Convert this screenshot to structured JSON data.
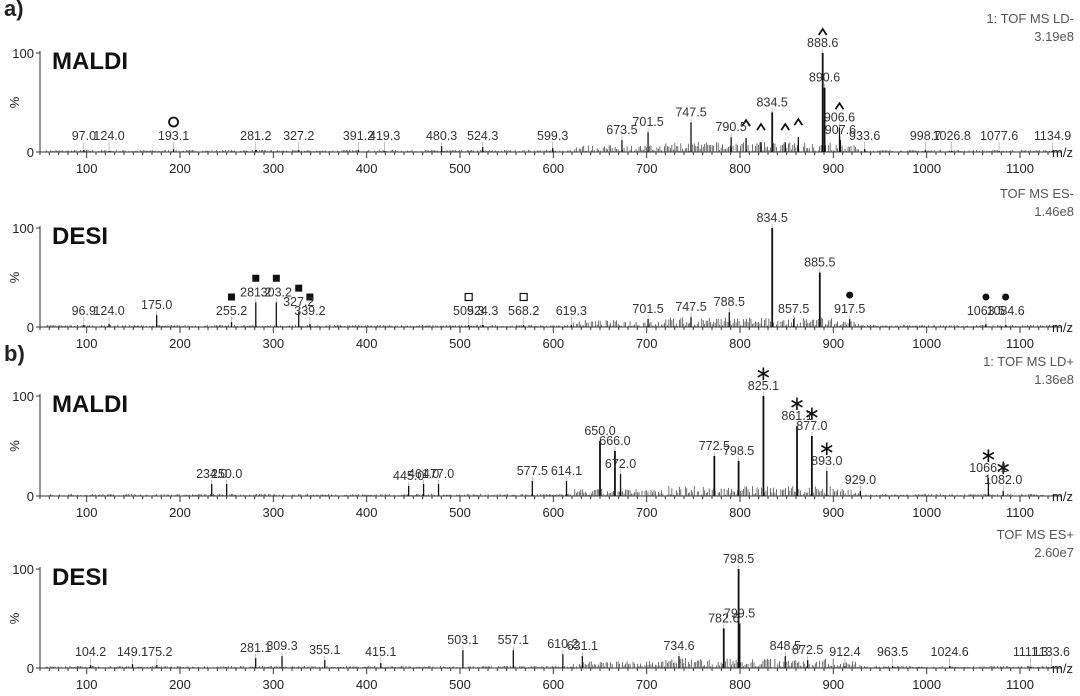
{
  "figure": {
    "part_labels": [
      "a)",
      "b)"
    ],
    "x_unit": "m/z",
    "y_axis_label": "%",
    "y_ticks": [
      0,
      100
    ],
    "x_ticks": [
      100,
      200,
      300,
      400,
      500,
      600,
      700,
      800,
      900,
      1000,
      1100
    ]
  },
  "chart_data": [
    {
      "type": "bar",
      "part": "a)",
      "technique": "MALDI",
      "header": [
        "1: TOF MS LD-",
        "3.19e8"
      ],
      "xlabel": "m/z",
      "ylabel": "%",
      "xlim": [
        50,
        1145
      ],
      "ylim": [
        0,
        100
      ],
      "peaks": [
        {
          "mz": 97.0,
          "int": 2,
          "label": "97.0"
        },
        {
          "mz": 124.0,
          "int": 1,
          "label": "124.0"
        },
        {
          "mz": 193.1,
          "int": 3,
          "label": "193.1",
          "marker": "open-circle"
        },
        {
          "mz": 281.2,
          "int": 2,
          "label": "281.2"
        },
        {
          "mz": 327.2,
          "int": 2,
          "label": "327.2"
        },
        {
          "mz": 391.2,
          "int": 2,
          "label": "391.2"
        },
        {
          "mz": 419.3,
          "int": 1,
          "label": "419.3"
        },
        {
          "mz": 480.3,
          "int": 6,
          "label": "480.3"
        },
        {
          "mz": 524.3,
          "int": 5,
          "label": "524.3"
        },
        {
          "mz": 599.3,
          "int": 4,
          "label": "599.3"
        },
        {
          "mz": 673.5,
          "int": 12,
          "label": "673.5"
        },
        {
          "mz": 701.5,
          "int": 20,
          "label": "701.5"
        },
        {
          "mz": 747.5,
          "int": 30,
          "label": "747.5"
        },
        {
          "mz": 790.5,
          "int": 15,
          "label": "790.5"
        },
        {
          "mz": 806.5,
          "int": 14,
          "marker": "caret"
        },
        {
          "mz": 822.5,
          "int": 10,
          "marker": "caret"
        },
        {
          "mz": 834.5,
          "int": 40,
          "label": "834.5"
        },
        {
          "mz": 848.5,
          "int": 10,
          "marker": "caret"
        },
        {
          "mz": 862.5,
          "int": 15,
          "marker": "caret"
        },
        {
          "mz": 888.6,
          "int": 100,
          "label": "888.6",
          "marker": "caret"
        },
        {
          "mz": 890.6,
          "int": 65,
          "label": "890.6"
        },
        {
          "mz": 906.6,
          "int": 25,
          "label": "906.6",
          "marker": "caret"
        },
        {
          "mz": 907.6,
          "int": 12,
          "label": "907.6"
        },
        {
          "mz": 933.6,
          "int": 3,
          "label": "933.6"
        },
        {
          "mz": 998.7,
          "int": 2,
          "label": "998.7"
        },
        {
          "mz": 1026.8,
          "int": 1,
          "label": "1026.8"
        },
        {
          "mz": 1077.6,
          "int": 1,
          "label": "1077.6"
        },
        {
          "mz": 1134.9,
          "int": 1,
          "label": "1134.9"
        }
      ]
    },
    {
      "type": "bar",
      "part": "a)",
      "technique": "DESI",
      "header": [
        "TOF MS ES-",
        "1.46e8"
      ],
      "xlabel": "m/z",
      "ylabel": "%",
      "xlim": [
        50,
        1145
      ],
      "ylim": [
        0,
        100
      ],
      "peaks": [
        {
          "mz": 96.9,
          "int": 2,
          "label": "96.9"
        },
        {
          "mz": 124.0,
          "int": 3,
          "label": "124.0"
        },
        {
          "mz": 175.0,
          "int": 12,
          "label": "175.0"
        },
        {
          "mz": 255.2,
          "int": 5,
          "label": "255.2",
          "marker": "filled-square"
        },
        {
          "mz": 281.2,
          "int": 25,
          "label": "281.2",
          "marker": "filled-square"
        },
        {
          "mz": 303.2,
          "int": 25,
          "label": "303.2",
          "marker": "filled-square"
        },
        {
          "mz": 327.2,
          "int": 15,
          "label": "327.2",
          "marker": "filled-square"
        },
        {
          "mz": 339.2,
          "int": 3,
          "label": "339.2",
          "marker": "filled-square"
        },
        {
          "mz": 509.3,
          "int": 2,
          "label": "509.3",
          "marker": "open-square"
        },
        {
          "mz": 524.3,
          "int": 2,
          "label": "524.3"
        },
        {
          "mz": 568.2,
          "int": 2,
          "label": "568.2",
          "marker": "open-square"
        },
        {
          "mz": 619.3,
          "int": 2,
          "label": "619.3"
        },
        {
          "mz": 701.5,
          "int": 8,
          "label": "701.5"
        },
        {
          "mz": 747.5,
          "int": 10,
          "label": "747.5"
        },
        {
          "mz": 788.5,
          "int": 15,
          "label": "788.5"
        },
        {
          "mz": 834.5,
          "int": 100,
          "label": "834.5"
        },
        {
          "mz": 857.5,
          "int": 8,
          "label": "857.5"
        },
        {
          "mz": 885.5,
          "int": 55,
          "label": "885.5"
        },
        {
          "mz": 917.5,
          "int": 8,
          "label": "917.5",
          "marker": "filled-circle"
        },
        {
          "mz": 1063.5,
          "int": 3,
          "label": "1063.5",
          "marker": "filled-circle"
        },
        {
          "mz": 1084.6,
          "int": 2,
          "label": "1084.6",
          "marker": "filled-circle"
        }
      ]
    },
    {
      "type": "bar",
      "part": "b)",
      "technique": "MALDI",
      "header": [
        "1: TOF MS LD+",
        "1.36e8"
      ],
      "xlabel": "m/z",
      "ylabel": "%",
      "xlim": [
        50,
        1145
      ],
      "ylim": [
        0,
        100
      ],
      "peaks": [
        {
          "mz": 234.0,
          "int": 12,
          "label": "234.0"
        },
        {
          "mz": 250.0,
          "int": 12,
          "label": "250.0"
        },
        {
          "mz": 445.0,
          "int": 10,
          "label": "445.0"
        },
        {
          "mz": 461.0,
          "int": 12,
          "label": "461.0"
        },
        {
          "mz": 477.0,
          "int": 12,
          "label": "477.0"
        },
        {
          "mz": 577.5,
          "int": 15,
          "label": "577.5"
        },
        {
          "mz": 614.1,
          "int": 15,
          "label": "614.1"
        },
        {
          "mz": 650.0,
          "int": 55,
          "label": "650.0"
        },
        {
          "mz": 666.0,
          "int": 45,
          "label": "666.0"
        },
        {
          "mz": 672.0,
          "int": 22,
          "label": "672.0"
        },
        {
          "mz": 772.5,
          "int": 40,
          "label": "772.5"
        },
        {
          "mz": 798.5,
          "int": 35,
          "label": "798.5"
        },
        {
          "mz": 825.1,
          "int": 100,
          "label": "825.1",
          "marker": "asterisk"
        },
        {
          "mz": 861.1,
          "int": 70,
          "label": "861.1",
          "marker": "asterisk"
        },
        {
          "mz": 877.0,
          "int": 60,
          "label": "877.0",
          "marker": "asterisk"
        },
        {
          "mz": 893.0,
          "int": 25,
          "label": "893.0",
          "marker": "asterisk"
        },
        {
          "mz": 929.0,
          "int": 5,
          "label": "929.0"
        },
        {
          "mz": 1066.1,
          "int": 18,
          "label": "1066.1",
          "marker": "asterisk"
        },
        {
          "mz": 1082.0,
          "int": 5,
          "label": "1082.0",
          "marker": "asterisk"
        }
      ]
    },
    {
      "type": "bar",
      "part": "b)",
      "technique": "DESI",
      "header": [
        "TOF MS ES+",
        "2.60e7"
      ],
      "xlabel": "m/z",
      "ylabel": "%",
      "xlim": [
        50,
        1145
      ],
      "ylim": [
        0,
        100
      ],
      "peaks": [
        {
          "mz": 104.2,
          "int": 3,
          "label": "104.2"
        },
        {
          "mz": 149.1,
          "int": 4,
          "label": "149.1"
        },
        {
          "mz": 175.2,
          "int": 3,
          "label": "175.2"
        },
        {
          "mz": 281.1,
          "int": 10,
          "label": "281.1"
        },
        {
          "mz": 309.3,
          "int": 12,
          "label": "309.3"
        },
        {
          "mz": 355.1,
          "int": 8,
          "label": "355.1"
        },
        {
          "mz": 415.1,
          "int": 5,
          "label": "415.1"
        },
        {
          "mz": 503.1,
          "int": 18,
          "label": "503.1"
        },
        {
          "mz": 557.1,
          "int": 18,
          "label": "557.1"
        },
        {
          "mz": 610.2,
          "int": 14,
          "label": "610.2"
        },
        {
          "mz": 631.1,
          "int": 12,
          "label": "631.1"
        },
        {
          "mz": 734.6,
          "int": 12,
          "label": "734.6"
        },
        {
          "mz": 782.6,
          "int": 40,
          "label": "782.6"
        },
        {
          "mz": 798.5,
          "int": 100,
          "label": "798.5"
        },
        {
          "mz": 799.5,
          "int": 45,
          "label": "799.5"
        },
        {
          "mz": 848.5,
          "int": 12,
          "label": "848.5"
        },
        {
          "mz": 872.5,
          "int": 8,
          "label": "872.5"
        },
        {
          "mz": 912.4,
          "int": 2,
          "label": "912.4"
        },
        {
          "mz": 963.5,
          "int": 2,
          "label": "963.5"
        },
        {
          "mz": 1024.6,
          "int": 2,
          "label": "1024.6"
        },
        {
          "mz": 1111.3,
          "int": 1,
          "label": "1111.3"
        },
        {
          "mz": 1133.6,
          "int": 1,
          "label": "1133.6"
        }
      ]
    }
  ]
}
